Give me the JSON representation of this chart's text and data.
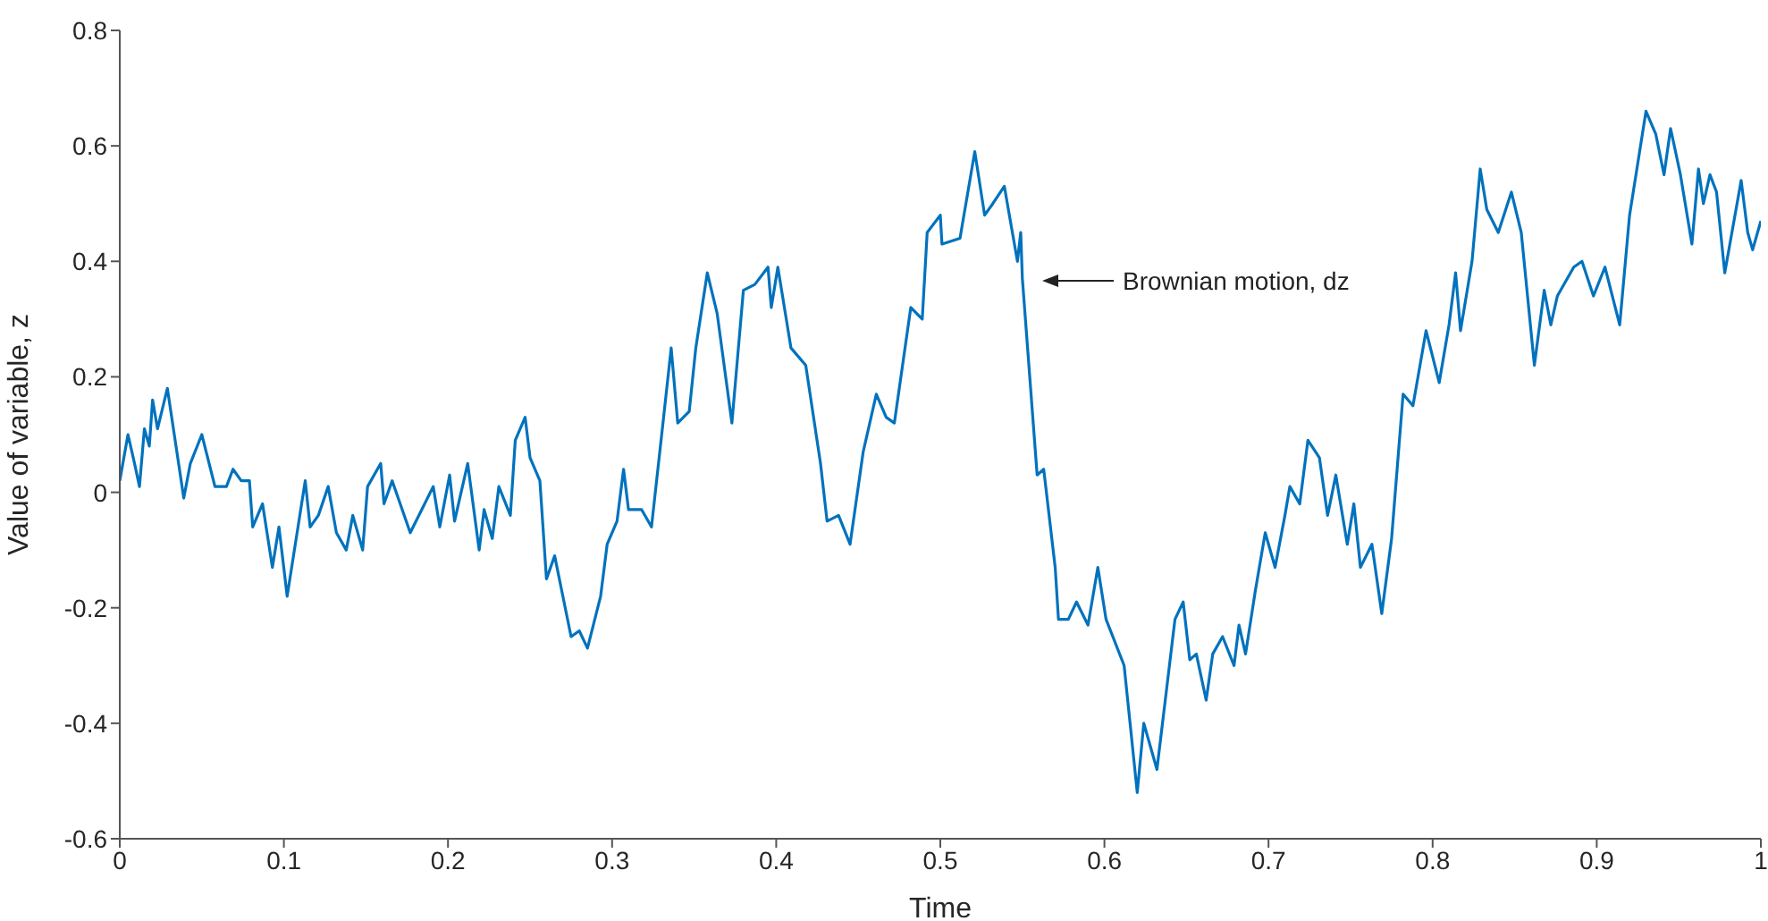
{
  "chart_data": {
    "type": "line",
    "xlabel": "Time",
    "ylabel": "Value of variable, z",
    "xlim": [
      0,
      1
    ],
    "xticks": [
      0,
      0.1,
      0.2,
      0.3,
      0.4,
      0.5,
      0.6,
      0.7,
      0.8,
      0.9,
      1
    ],
    "ylim": [
      -0.6,
      0.8
    ],
    "yticks": [
      -0.6,
      -0.4,
      -0.2,
      0,
      0.2,
      0.4,
      0.6,
      0.8
    ],
    "annotations": [
      "Brownian motion, dz"
    ],
    "x": [
      0,
      0.005,
      0.009,
      0.012,
      0.015,
      0.018,
      0.02,
      0.023,
      0.029,
      0.039,
      0.043,
      0.05,
      0.058,
      0.065,
      0.069,
      0.074,
      0.079,
      0.081,
      0.087,
      0.093,
      0.097,
      0.102,
      0.113,
      0.116,
      0.121,
      0.127,
      0.132,
      0.138,
      0.142,
      0.148,
      0.151,
      0.159,
      0.161,
      0.166,
      0.177,
      0.184,
      0.191,
      0.195,
      0.201,
      0.204,
      0.212,
      0.219,
      0.222,
      0.227,
      0.231,
      0.238,
      0.241,
      0.247,
      0.25,
      0.256,
      0.26,
      0.265,
      0.275,
      0.28,
      0.285,
      0.293,
      0.297,
      0.303,
      0.307,
      0.31,
      0.318,
      0.324,
      0.331,
      0.336,
      0.34,
      0.347,
      0.351,
      0.358,
      0.364,
      0.373,
      0.38,
      0.387,
      0.395,
      0.397,
      0.401,
      0.409,
      0.418,
      0.427,
      0.431,
      0.438,
      0.445,
      0.453,
      0.461,
      0.467,
      0.472,
      0.482,
      0.489,
      0.492,
      0.5,
      0.501,
      0.512,
      0.521,
      0.527,
      0.532,
      0.539,
      0.547,
      0.549,
      0.55,
      0.559,
      0.563,
      0.57,
      0.572,
      0.578,
      0.583,
      0.59,
      0.596,
      0.601,
      0.612,
      0.62,
      0.624,
      0.632,
      0.643,
      0.648,
      0.652,
      0.656,
      0.662,
      0.666,
      0.672,
      0.679,
      0.682,
      0.686,
      0.692,
      0.698,
      0.704,
      0.71,
      0.713,
      0.719,
      0.724,
      0.731,
      0.736,
      0.741,
      0.748,
      0.752,
      0.756,
      0.763,
      0.769,
      0.775,
      0.782,
      0.788,
      0.796,
      0.804,
      0.81,
      0.814,
      0.817,
      0.824,
      0.829,
      0.833,
      0.84,
      0.848,
      0.854,
      0.862,
      0.868,
      0.872,
      0.876,
      0.886,
      0.891,
      0.898,
      0.905,
      0.914,
      0.92,
      0.93,
      0.936,
      0.941,
      0.945,
      0.951,
      0.958,
      0.962,
      0.965,
      0.969,
      0.973,
      0.978,
      0.988,
      0.992,
      0.995,
      1
    ],
    "series": [
      {
        "color": "#0072bd",
        "values": [
          0.02,
          0.1,
          0.05,
          0.01,
          0.11,
          0.08,
          0.16,
          0.11,
          0.18,
          -0.01,
          0.05,
          0.1,
          0.01,
          0.01,
          0.04,
          0.02,
          0.02,
          -0.06,
          -0.02,
          -0.13,
          -0.06,
          -0.18,
          0.02,
          -0.06,
          -0.04,
          0.01,
          -0.07,
          -0.1,
          -0.04,
          -0.1,
          0.01,
          0.05,
          -0.02,
          0.02,
          -0.07,
          -0.03,
          0.01,
          -0.06,
          0.03,
          -0.05,
          0.05,
          -0.1,
          -0.03,
          -0.08,
          0.01,
          -0.04,
          0.09,
          0.13,
          0.06,
          0.02,
          -0.15,
          -0.11,
          -0.25,
          -0.24,
          -0.27,
          -0.18,
          -0.09,
          -0.05,
          0.04,
          -0.03,
          -0.03,
          -0.06,
          0.12,
          0.25,
          0.12,
          0.14,
          0.25,
          0.38,
          0.31,
          0.12,
          0.35,
          0.36,
          0.39,
          0.32,
          0.39,
          0.25,
          0.22,
          0.05,
          -0.05,
          -0.04,
          -0.09,
          0.07,
          0.17,
          0.13,
          0.12,
          0.32,
          0.3,
          0.45,
          0.48,
          0.43,
          0.44,
          0.59,
          0.48,
          0.5,
          0.53,
          0.4,
          0.45,
          0.37,
          0.03,
          0.04,
          -0.13,
          -0.22,
          -0.22,
          -0.19,
          -0.23,
          -0.13,
          -0.22,
          -0.3,
          -0.52,
          -0.4,
          -0.48,
          -0.22,
          -0.19,
          -0.29,
          -0.28,
          -0.36,
          -0.28,
          -0.25,
          -0.3,
          -0.23,
          -0.28,
          -0.17,
          -0.07,
          -0.13,
          -0.04,
          0.01,
          -0.02,
          0.09,
          0.06,
          -0.04,
          0.03,
          -0.09,
          -0.02,
          -0.13,
          -0.09,
          -0.21,
          -0.08,
          0.17,
          0.15,
          0.28,
          0.19,
          0.29,
          0.38,
          0.28,
          0.4,
          0.56,
          0.49,
          0.45,
          0.52,
          0.45,
          0.22,
          0.35,
          0.29,
          0.34,
          0.39,
          0.4,
          0.34,
          0.39,
          0.29,
          0.48,
          0.66,
          0.62,
          0.55,
          0.63,
          0.55,
          0.43,
          0.56,
          0.5,
          0.55,
          0.52,
          0.38,
          0.54,
          0.45,
          0.42,
          0.47
        ]
      }
    ]
  }
}
